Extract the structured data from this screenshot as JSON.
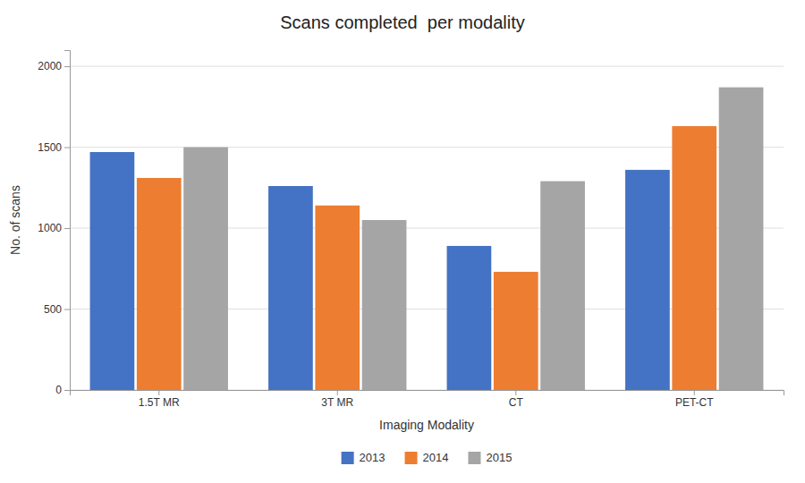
{
  "chart_data": {
    "type": "bar",
    "title": "Scans completed  per modality",
    "xlabel": "Imaging Modality",
    "ylabel": "No. of scans",
    "categories": [
      "1.5T MR",
      "3T MR",
      "CT",
      "PET-CT"
    ],
    "series": [
      {
        "name": "2013",
        "color": "#4472C4",
        "values": [
          1470,
          1260,
          890,
          1360
        ]
      },
      {
        "name": "2014",
        "color": "#ED7D31",
        "values": [
          1310,
          1140,
          730,
          1630
        ]
      },
      {
        "name": "2015",
        "color": "#A5A5A5",
        "values": [
          1500,
          1050,
          1290,
          1870
        ]
      }
    ],
    "ylim": [
      0,
      2100
    ],
    "yticks": [
      0,
      500,
      1000,
      1500,
      2000
    ],
    "grid": true,
    "legend": "bottom"
  }
}
